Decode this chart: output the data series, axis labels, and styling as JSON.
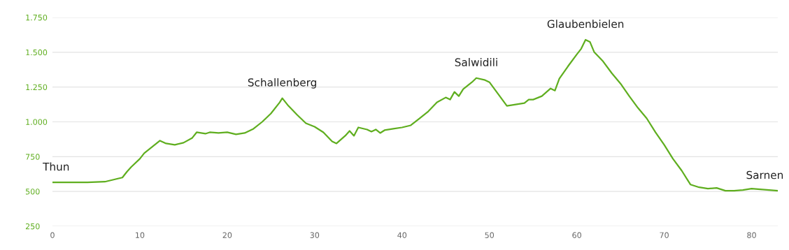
{
  "chart_data": {
    "type": "line",
    "color": "#5fae1f",
    "x": [
      0,
      2,
      4,
      6,
      7,
      8,
      8.5,
      9,
      10,
      10.5,
      11,
      12,
      12.3,
      13,
      14,
      15,
      16,
      16.5,
      17.5,
      18,
      19,
      20,
      21,
      22,
      23,
      24,
      25,
      26,
      26.3,
      27,
      28,
      29,
      30,
      31,
      32,
      32.5,
      33.5,
      34,
      34.5,
      35,
      36,
      36.5,
      37,
      37.5,
      38,
      39,
      40,
      41,
      42,
      43,
      44,
      45,
      45.5,
      46,
      46.5,
      47,
      48,
      48.5,
      49.5,
      50,
      51,
      52,
      53,
      54,
      54.5,
      55,
      56,
      57,
      57.5,
      58,
      59,
      60,
      60.5,
      61,
      61.5,
      62,
      63,
      64,
      65,
      66,
      67,
      68,
      69,
      70,
      71,
      72,
      73,
      74,
      75,
      76,
      77,
      78,
      79,
      80,
      81,
      82,
      83
    ],
    "values": [
      565,
      565,
      565,
      570,
      585,
      600,
      640,
      675,
      735,
      775,
      800,
      850,
      865,
      845,
      835,
      850,
      885,
      925,
      915,
      925,
      920,
      925,
      910,
      920,
      950,
      1000,
      1060,
      1140,
      1170,
      1115,
      1050,
      990,
      965,
      925,
      860,
      845,
      900,
      935,
      900,
      960,
      945,
      930,
      945,
      920,
      940,
      950,
      960,
      975,
      1025,
      1075,
      1140,
      1175,
      1160,
      1215,
      1185,
      1235,
      1285,
      1315,
      1300,
      1285,
      1200,
      1115,
      1125,
      1135,
      1160,
      1160,
      1185,
      1240,
      1225,
      1310,
      1400,
      1485,
      1525,
      1590,
      1575,
      1500,
      1435,
      1350,
      1275,
      1185,
      1100,
      1025,
      925,
      835,
      735,
      650,
      550,
      530,
      520,
      525,
      505,
      505,
      510,
      520,
      515,
      510,
      505
    ],
    "xlim": [
      0,
      83
    ],
    "xticks": [
      0,
      10,
      20,
      30,
      40,
      50,
      60,
      70,
      80
    ],
    "ylim": [
      250,
      1750
    ],
    "yticks": [
      {
        "value": 250,
        "label": "250"
      },
      {
        "value": 500,
        "label": "500"
      },
      {
        "value": 750,
        "label": "750"
      },
      {
        "value": 1000,
        "label": "1.000"
      },
      {
        "value": 1250,
        "label": "1.250"
      },
      {
        "value": 1500,
        "label": "1.500"
      },
      {
        "value": 1750,
        "label": "1.750"
      }
    ],
    "grid": "y",
    "marker": "none",
    "line_style": "solid",
    "annotations": [
      {
        "text": "Thun",
        "x": 0,
        "y": 565
      },
      {
        "text": "Schallenberg",
        "x": 26.3,
        "y": 1170
      },
      {
        "text": "Salwidili",
        "x": 48.5,
        "y": 1315
      },
      {
        "text": "Glaubenbielen",
        "x": 61,
        "y": 1590
      },
      {
        "text": "Sarnen",
        "x": 83,
        "y": 505
      }
    ]
  }
}
